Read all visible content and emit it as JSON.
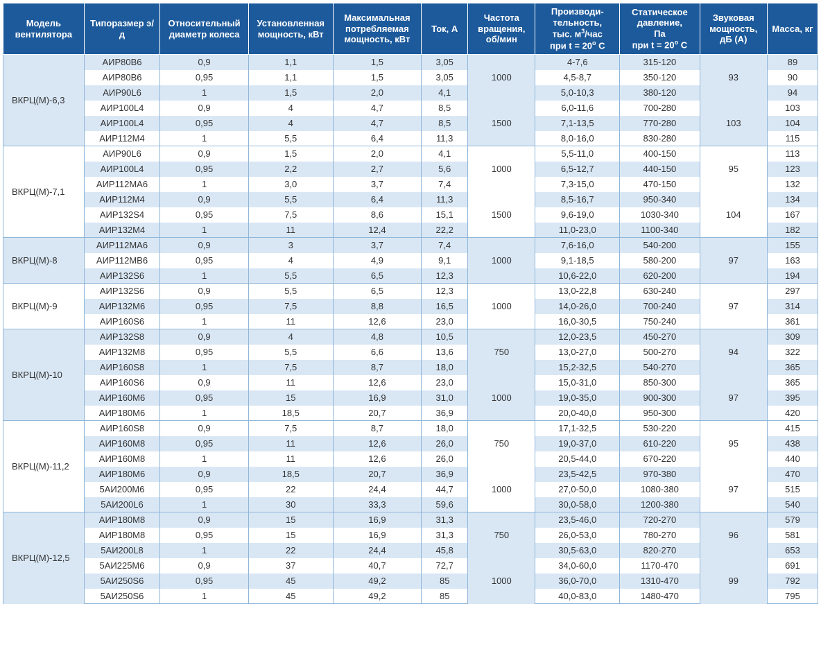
{
  "headers": {
    "model": "Модель вентилятора",
    "type": "Типоразмер э/д",
    "diam": "Относительный диаметр колеса",
    "inst": "Установленная мощность, кВт",
    "cons": "Максимальная потребляемая мощность, кВт",
    "curr": "Ток, А",
    "freq": "Частота вращения, об/мин",
    "perf_l1": "Производи-",
    "perf_l2": "тельность,",
    "perf_l3": "тыс. м",
    "perf_sup": "3",
    "perf_l3b": "/час",
    "perf_l4": "при t = 20",
    "perf_deg": "o",
    "perf_l4b": " С",
    "press_l1": "Статическое",
    "press_l2": "давление,",
    "press_l3": "Па",
    "press_l4": "при t = 20",
    "press_deg": "o",
    "press_l4b": " С",
    "sound": "Звуковая мощность, дБ (А)",
    "mass": "Масса, кг"
  },
  "groups": [
    {
      "model": "ВКРЦ(М)-6,3",
      "subgroups": [
        {
          "freq": "1000",
          "sound": "93",
          "rows": [
            {
              "type": "АИР80В6",
              "diam": "0,9",
              "inst": "1,1",
              "cons": "1,5",
              "curr": "3,05",
              "perf": "4-7,6",
              "press": "315-120",
              "mass": "89"
            },
            {
              "type": "АИР80В6",
              "diam": "0,95",
              "inst": "1,1",
              "cons": "1,5",
              "curr": "3,05",
              "perf": "4,5-8,7",
              "press": "350-120",
              "mass": "90"
            },
            {
              "type": "АИР90L6",
              "diam": "1",
              "inst": "1,5",
              "cons": "2,0",
              "curr": "4,1",
              "perf": "5,0-10,3",
              "press": "380-120",
              "mass": "94"
            }
          ]
        },
        {
          "freq": "1500",
          "sound": "103",
          "rows": [
            {
              "type": "АИР100L4",
              "diam": "0,9",
              "inst": "4",
              "cons": "4,7",
              "curr": "8,5",
              "perf": "6,0-11,6",
              "press": "700-280",
              "mass": "103"
            },
            {
              "type": "АИР100L4",
              "diam": "0,95",
              "inst": "4",
              "cons": "4,7",
              "curr": "8,5",
              "perf": "7,1-13,5",
              "press": "770-280",
              "mass": "104"
            },
            {
              "type": "АИР112М4",
              "diam": "1",
              "inst": "5,5",
              "cons": "6,4",
              "curr": "11,3",
              "perf": "8,0-16,0",
              "press": "830-280",
              "mass": "115"
            }
          ]
        }
      ]
    },
    {
      "model": "ВКРЦ(М)-7,1",
      "subgroups": [
        {
          "freq": "1000",
          "sound": "95",
          "rows": [
            {
              "type": "АИР90L6",
              "diam": "0,9",
              "inst": "1,5",
              "cons": "2,0",
              "curr": "4,1",
              "perf": "5,5-11,0",
              "press": "400-150",
              "mass": "113"
            },
            {
              "type": "АИР100L4",
              "diam": "0,95",
              "inst": "2,2",
              "cons": "2,7",
              "curr": "5,6",
              "perf": "6,5-12,7",
              "press": "440-150",
              "mass": "123"
            },
            {
              "type": "АИР112МА6",
              "diam": "1",
              "inst": "3,0",
              "cons": "3,7",
              "curr": "7,4",
              "perf": "7,3-15,0",
              "press": "470-150",
              "mass": "132"
            }
          ]
        },
        {
          "freq": "1500",
          "sound": "104",
          "rows": [
            {
              "type": "АИР112М4",
              "diam": "0,9",
              "inst": "5,5",
              "cons": "6,4",
              "curr": "11,3",
              "perf": "8,5-16,7",
              "press": "950-340",
              "mass": "134"
            },
            {
              "type": "АИР132S4",
              "diam": "0,95",
              "inst": "7,5",
              "cons": "8,6",
              "curr": "15,1",
              "perf": "9,6-19,0",
              "press": "1030-340",
              "mass": "167"
            },
            {
              "type": "АИР132М4",
              "diam": "1",
              "inst": "11",
              "cons": "12,4",
              "curr": "22,2",
              "perf": "11,0-23,0",
              "press": "1100-340",
              "mass": "182"
            }
          ]
        }
      ]
    },
    {
      "model": "ВКРЦ(М)-8",
      "subgroups": [
        {
          "freq": "1000",
          "sound": "97",
          "rows": [
            {
              "type": "АИР112МА6",
              "diam": "0,9",
              "inst": "3",
              "cons": "3,7",
              "curr": "7,4",
              "perf": "7,6-16,0",
              "press": "540-200",
              "mass": "155"
            },
            {
              "type": "АИР112МВ6",
              "diam": "0,95",
              "inst": "4",
              "cons": "4,9",
              "curr": "9,1",
              "perf": "9,1-18,5",
              "press": "580-200",
              "mass": "163"
            },
            {
              "type": "АИР132S6",
              "diam": "1",
              "inst": "5,5",
              "cons": "6,5",
              "curr": "12,3",
              "perf": "10,6-22,0",
              "press": "620-200",
              "mass": "194"
            }
          ]
        }
      ]
    },
    {
      "model": "ВКРЦ(М)-9",
      "subgroups": [
        {
          "freq": "1000",
          "sound": "97",
          "rows": [
            {
              "type": "АИР132S6",
              "diam": "0,9",
              "inst": "5,5",
              "cons": "6,5",
              "curr": "12,3",
              "perf": "13,0-22,8",
              "press": "630-240",
              "mass": "297"
            },
            {
              "type": "АИР132М6",
              "diam": "0,95",
              "inst": "7,5",
              "cons": "8,8",
              "curr": "16,5",
              "perf": "14,0-26,0",
              "press": "700-240",
              "mass": "314"
            },
            {
              "type": "АИР160S6",
              "diam": "1",
              "inst": "11",
              "cons": "12,6",
              "curr": "23,0",
              "perf": "16,0-30,5",
              "press": "750-240",
              "mass": "361"
            }
          ]
        }
      ]
    },
    {
      "model": "ВКРЦ(М)-10",
      "subgroups": [
        {
          "freq": "750",
          "sound": "94",
          "rows": [
            {
              "type": "АИР132S8",
              "diam": "0,9",
              "inst": "4",
              "cons": "4,8",
              "curr": "10,5",
              "perf": "12,0-23,5",
              "press": "450-270",
              "mass": "309"
            },
            {
              "type": "АИР132М8",
              "diam": "0,95",
              "inst": "5,5",
              "cons": "6,6",
              "curr": "13,6",
              "perf": "13,0-27,0",
              "press": "500-270",
              "mass": "322"
            },
            {
              "type": "АИР160S8",
              "diam": "1",
              "inst": "7,5",
              "cons": "8,7",
              "curr": "18,0",
              "perf": "15,2-32,5",
              "press": "540-270",
              "mass": "365"
            }
          ]
        },
        {
          "freq": "1000",
          "sound": "97",
          "rows": [
            {
              "type": "АИР160S6",
              "diam": "0,9",
              "inst": "11",
              "cons": "12,6",
              "curr": "23,0",
              "perf": "15,0-31,0",
              "press": "850-300",
              "mass": "365"
            },
            {
              "type": "АИР160М6",
              "diam": "0,95",
              "inst": "15",
              "cons": "16,9",
              "curr": "31,0",
              "perf": "19,0-35,0",
              "press": "900-300",
              "mass": "395"
            },
            {
              "type": "АИР180М6",
              "diam": "1",
              "inst": "18,5",
              "cons": "20,7",
              "curr": "36,9",
              "perf": "20,0-40,0",
              "press": "950-300",
              "mass": "420"
            }
          ]
        }
      ]
    },
    {
      "model": "ВКРЦ(М)-11,2",
      "subgroups": [
        {
          "freq": "750",
          "sound": "95",
          "rows": [
            {
              "type": "АИР160S8",
              "diam": "0,9",
              "inst": "7,5",
              "cons": "8,7",
              "curr": "18,0",
              "perf": "17,1-32,5",
              "press": "530-220",
              "mass": "415"
            },
            {
              "type": "АИР160М8",
              "diam": "0,95",
              "inst": "11",
              "cons": "12,6",
              "curr": "26,0",
              "perf": "19,0-37,0",
              "press": "610-220",
              "mass": "438"
            },
            {
              "type": "АИР160М8",
              "diam": "1",
              "inst": "11",
              "cons": "12,6",
              "curr": "26,0",
              "perf": "20,5-44,0",
              "press": "670-220",
              "mass": "440"
            }
          ]
        },
        {
          "freq": "1000",
          "sound": "97",
          "rows": [
            {
              "type": "АИР180М6",
              "diam": "0,9",
              "inst": "18,5",
              "cons": "20,7",
              "curr": "36,9",
              "perf": "23,5-42,5",
              "press": "970-380",
              "mass": "470"
            },
            {
              "type": "5АИ200М6",
              "diam": "0,95",
              "inst": "22",
              "cons": "24,4",
              "curr": "44,7",
              "perf": "27,0-50,0",
              "press": "1080-380",
              "mass": "515"
            },
            {
              "type": "5АИ200L6",
              "diam": "1",
              "inst": "30",
              "cons": "33,3",
              "curr": "59,6",
              "perf": "30,0-58,0",
              "press": "1200-380",
              "mass": "540"
            }
          ]
        }
      ]
    },
    {
      "model": "ВКРЦ(М)-12,5",
      "subgroups": [
        {
          "freq": "750",
          "sound": "96",
          "rows": [
            {
              "type": "АИР180М8",
              "diam": "0,9",
              "inst": "15",
              "cons": "16,9",
              "curr": "31,3",
              "perf": "23,5-46,0",
              "press": "720-270",
              "mass": "579"
            },
            {
              "type": "АИР180М8",
              "diam": "0,95",
              "inst": "15",
              "cons": "16,9",
              "curr": "31,3",
              "perf": "26,0-53,0",
              "press": "780-270",
              "mass": "581"
            },
            {
              "type": "5АИ200L8",
              "diam": "1",
              "inst": "22",
              "cons": "24,4",
              "curr": "45,8",
              "perf": "30,5-63,0",
              "press": "820-270",
              "mass": "653"
            }
          ]
        },
        {
          "freq": "1000",
          "sound": "99",
          "rows": [
            {
              "type": "5АИ225М6",
              "diam": "0,9",
              "inst": "37",
              "cons": "40,7",
              "curr": "72,7",
              "perf": "34,0-60,0",
              "press": "1170-470",
              "mass": "691"
            },
            {
              "type": "5АИ250S6",
              "diam": "0,95",
              "inst": "45",
              "cons": "49,2",
              "curr": "85",
              "perf": "36,0-70,0",
              "press": "1310-470",
              "mass": "792"
            },
            {
              "type": "5АИ250S6",
              "diam": "1",
              "inst": "45",
              "cons": "49,2",
              "curr": "85",
              "perf": "40,0-83,0",
              "press": "1480-470",
              "mass": "795"
            }
          ]
        }
      ]
    }
  ]
}
